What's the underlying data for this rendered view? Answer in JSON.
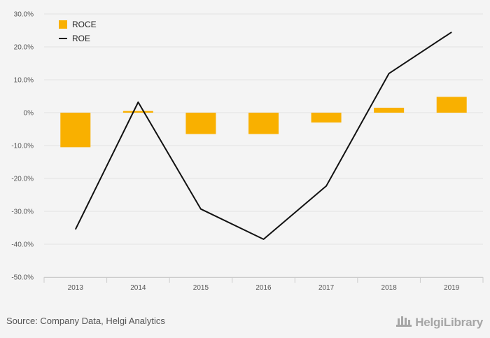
{
  "chart_data": {
    "type": "bar",
    "categories": [
      "2013",
      "2014",
      "2015",
      "2016",
      "2017",
      "2018",
      "2019"
    ],
    "series": [
      {
        "name": "ROCE",
        "type": "bar",
        "values": [
          -10.5,
          0.5,
          -6.5,
          -6.5,
          -3.0,
          1.5,
          4.8
        ],
        "color": "#f9b000"
      },
      {
        "name": "ROE",
        "type": "line",
        "values": [
          -35.5,
          3.2,
          -29.3,
          -38.5,
          -22.3,
          11.9,
          24.5
        ],
        "color": "#111111"
      }
    ],
    "ylim": [
      -50,
      30
    ],
    "yticks": [
      -50,
      -40,
      -30,
      -20,
      -10,
      0,
      10,
      20,
      30
    ],
    "ytick_labels": [
      "-50.0%",
      "-40.0%",
      "-30.0%",
      "-20.0%",
      "-10.0%",
      "0%",
      "10.0%",
      "20.0%",
      "30.0%"
    ],
    "grid": true,
    "legend": "top-left"
  },
  "footer": {
    "source": "Source: Company Data, Helgi Analytics",
    "brand": "HelgiLibrary"
  }
}
